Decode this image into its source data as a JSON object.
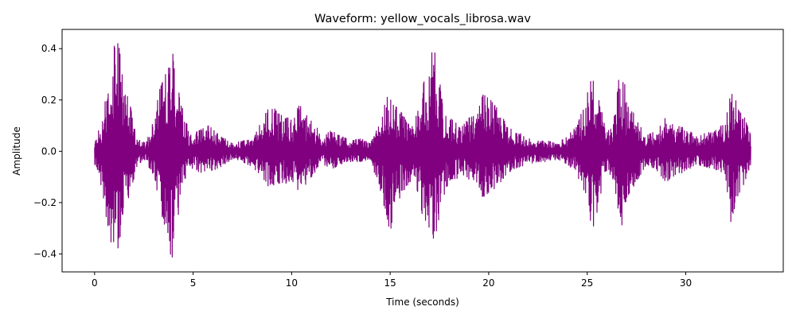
{
  "chart_data": {
    "type": "line",
    "title": "Waveform: yellow_vocals_librosa.wav",
    "xlabel": "Time (seconds)",
    "ylabel": "Amplitude",
    "xlim": [
      -1.65,
      34.95
    ],
    "ylim": [
      -0.47,
      0.475
    ],
    "xticks": [
      0,
      5,
      10,
      15,
      20,
      25,
      30
    ],
    "xtick_labels": [
      "0",
      "5",
      "10",
      "15",
      "20",
      "25",
      "30"
    ],
    "yticks": [
      -0.4,
      -0.2,
      0.0,
      0.2,
      0.4
    ],
    "ytick_labels": [
      "−0.4",
      "−0.2",
      "0.0",
      "0.2",
      "0.4"
    ],
    "grid": false,
    "legend": "none",
    "duration": 33.3,
    "series": [
      {
        "color": "#800080",
        "envelope": {
          "t": [
            0.0,
            0.3,
            0.6,
            0.9,
            1.1,
            1.25,
            1.5,
            1.8,
            2.2,
            2.6,
            3.0,
            3.3,
            3.6,
            3.9,
            4.0,
            4.2,
            4.5,
            4.8,
            5.3,
            5.8,
            6.2,
            6.6,
            7.0,
            7.5,
            8.0,
            8.5,
            8.9,
            9.2,
            9.6,
            10.0,
            10.4,
            10.8,
            11.2,
            11.6,
            12.0,
            12.5,
            13.0,
            13.5,
            14.0,
            14.4,
            14.8,
            15.0,
            15.2,
            15.5,
            15.8,
            16.2,
            16.6,
            17.0,
            17.2,
            17.4,
            17.6,
            17.8,
            18.2,
            18.6,
            19.0,
            19.4,
            19.7,
            20.0,
            20.4,
            20.8,
            21.2,
            21.6,
            22.0,
            22.5,
            23.0,
            23.5,
            24.0,
            24.5,
            25.0,
            25.3,
            25.6,
            26.0,
            26.4,
            26.7,
            27.0,
            27.5,
            28.0,
            28.5,
            29.0,
            29.5,
            30.0,
            30.5,
            31.0,
            31.5,
            31.8,
            32.0,
            32.3,
            32.6,
            33.0,
            33.3
          ],
          "upper": [
            0.04,
            0.1,
            0.22,
            0.38,
            0.44,
            0.4,
            0.26,
            0.18,
            0.05,
            0.03,
            0.12,
            0.24,
            0.3,
            0.4,
            0.39,
            0.28,
            0.18,
            0.06,
            0.08,
            0.1,
            0.07,
            0.05,
            0.03,
            0.04,
            0.05,
            0.12,
            0.2,
            0.16,
            0.14,
            0.13,
            0.18,
            0.14,
            0.1,
            0.06,
            0.08,
            0.06,
            0.04,
            0.05,
            0.03,
            0.1,
            0.2,
            0.24,
            0.18,
            0.16,
            0.12,
            0.09,
            0.25,
            0.32,
            0.43,
            0.3,
            0.24,
            0.14,
            0.12,
            0.09,
            0.13,
            0.14,
            0.22,
            0.21,
            0.17,
            0.12,
            0.08,
            0.07,
            0.05,
            0.04,
            0.04,
            0.03,
            0.06,
            0.1,
            0.22,
            0.35,
            0.2,
            0.07,
            0.14,
            0.35,
            0.22,
            0.12,
            0.06,
            0.08,
            0.14,
            0.1,
            0.09,
            0.06,
            0.07,
            0.08,
            0.1,
            0.1,
            0.25,
            0.2,
            0.14,
            0.06
          ],
          "lower": [
            -0.05,
            -0.12,
            -0.26,
            -0.38,
            -0.4,
            -0.36,
            -0.24,
            -0.16,
            -0.05,
            -0.03,
            -0.11,
            -0.22,
            -0.3,
            -0.42,
            -0.4,
            -0.26,
            -0.18,
            -0.06,
            -0.08,
            -0.09,
            -0.07,
            -0.05,
            -0.03,
            -0.04,
            -0.06,
            -0.1,
            -0.15,
            -0.12,
            -0.13,
            -0.11,
            -0.16,
            -0.12,
            -0.08,
            -0.05,
            -0.07,
            -0.05,
            -0.04,
            -0.04,
            -0.03,
            -0.14,
            -0.24,
            -0.32,
            -0.22,
            -0.18,
            -0.14,
            -0.1,
            -0.24,
            -0.3,
            -0.34,
            -0.3,
            -0.25,
            -0.14,
            -0.12,
            -0.09,
            -0.12,
            -0.12,
            -0.18,
            -0.16,
            -0.14,
            -0.1,
            -0.07,
            -0.06,
            -0.05,
            -0.04,
            -0.04,
            -0.03,
            -0.05,
            -0.09,
            -0.22,
            -0.31,
            -0.2,
            -0.07,
            -0.12,
            -0.38,
            -0.18,
            -0.12,
            -0.05,
            -0.07,
            -0.12,
            -0.09,
            -0.08,
            -0.05,
            -0.06,
            -0.07,
            -0.08,
            -0.09,
            -0.28,
            -0.18,
            -0.12,
            -0.05
          ]
        }
      }
    ]
  }
}
